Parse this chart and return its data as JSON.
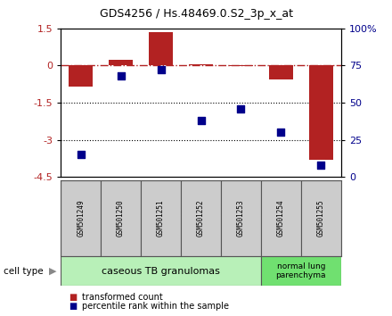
{
  "title": "GDS4256 / Hs.48469.0.S2_3p_x_at",
  "samples": [
    "GSM501249",
    "GSM501250",
    "GSM501251",
    "GSM501252",
    "GSM501253",
    "GSM501254",
    "GSM501255"
  ],
  "transformed_counts": [
    -0.85,
    0.22,
    1.35,
    0.07,
    -0.03,
    -0.55,
    -3.8
  ],
  "percentile_ranks": [
    15,
    68,
    72,
    38,
    46,
    30,
    8
  ],
  "ylim_left": [
    -4.5,
    1.5
  ],
  "yticks_left": [
    1.5,
    0,
    -1.5,
    -3,
    -4.5
  ],
  "yticks_right_vals": [
    100,
    75,
    50,
    25,
    0
  ],
  "yticks_right_labels": [
    "100%",
    "75",
    "50",
    "25",
    "0"
  ],
  "bar_color": "#b22222",
  "dot_color": "#00008b",
  "dot_size": 35,
  "hline_y": 0,
  "dotted_lines": [
    -1.5,
    -3
  ],
  "group1_samples": [
    0,
    1,
    2,
    3,
    4
  ],
  "group2_samples": [
    5,
    6
  ],
  "group1_label": "caseous TB granulomas",
  "group2_label": "normal lung\nparenchyma",
  "group1_color": "#b8f0b8",
  "group2_color": "#70e070",
  "cell_type_label": "cell type",
  "legend_bar_label": "transformed count",
  "legend_dot_label": "percentile rank within the sample",
  "bar_width": 0.6
}
